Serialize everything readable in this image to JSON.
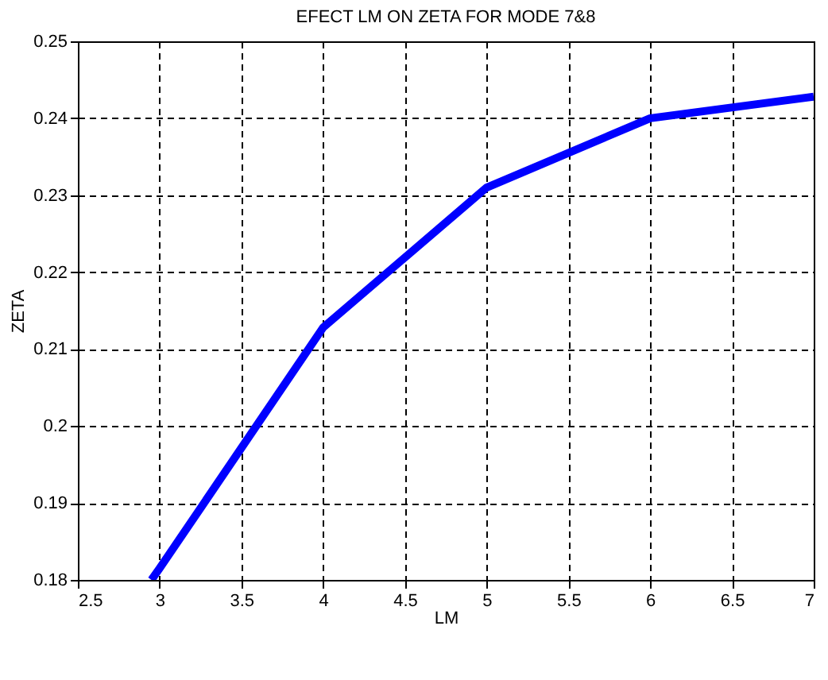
{
  "chart_data": {
    "type": "line",
    "title": "EFECT LM ON ZETA FOR MODE 7&8",
    "xlabel": "LM",
    "ylabel": "ZETA",
    "x": [
      2.95,
      3,
      4,
      5,
      6,
      7
    ],
    "series": [
      {
        "color": "#0000ff",
        "values": [
          0.18,
          0.1815,
          0.2128,
          0.231,
          0.24,
          0.2428
        ]
      }
    ],
    "xlim": [
      2.5,
      7
    ],
    "xticks": [
      2.5,
      3,
      3.5,
      4,
      4.5,
      5,
      5.5,
      6,
      6.5,
      7
    ],
    "ylim": [
      0.18,
      0.25
    ],
    "yticks": [
      0.18,
      0.19,
      0.2,
      0.21,
      0.22,
      0.23,
      0.24,
      0.25
    ],
    "grid": true,
    "line_style": "solid",
    "marker": "none"
  }
}
